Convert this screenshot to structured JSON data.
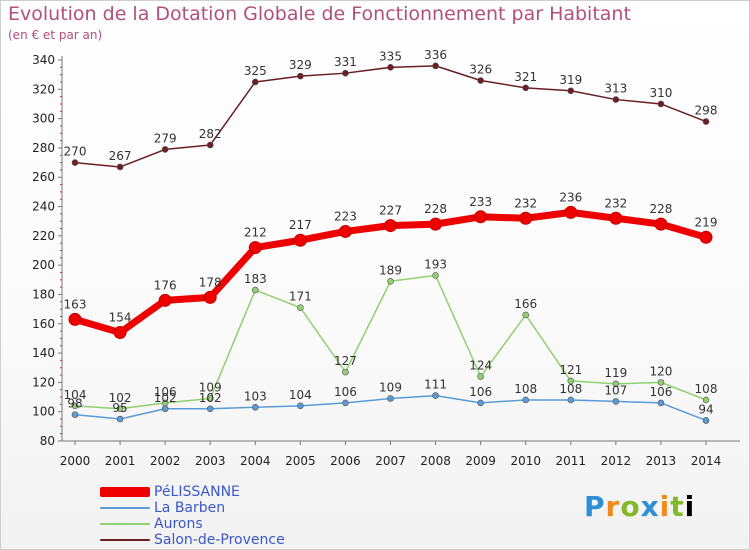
{
  "chart_data": {
    "type": "line",
    "title": "Evolution de la Dotation Globale de Fonctionnement par Habitant",
    "subtitle": "(en € et par an)",
    "xlabel": "",
    "ylabel": "",
    "x": [
      "2000",
      "2001",
      "2002",
      "2003",
      "2004",
      "2005",
      "2006",
      "2007",
      "2008",
      "2009",
      "2010",
      "2011",
      "2012",
      "2013",
      "2014"
    ],
    "ylim": [
      80,
      340
    ],
    "yticks": [
      80,
      100,
      120,
      140,
      160,
      180,
      200,
      220,
      240,
      260,
      280,
      300,
      320,
      340
    ],
    "grid": false,
    "legend_position": "bottom-left",
    "series": [
      {
        "name": "Salon-de-Provence",
        "color": "#6b1e24",
        "values": [
          270,
          267,
          279,
          282,
          325,
          329,
          331,
          335,
          336,
          326,
          321,
          319,
          313,
          310,
          298
        ]
      },
      {
        "name": "Aurons",
        "color": "#90d070",
        "values": [
          104,
          102,
          106,
          109,
          183,
          171,
          127,
          189,
          193,
          124,
          166,
          121,
          119,
          120,
          108
        ]
      },
      {
        "name": "La Barben",
        "color": "#5b9bd5",
        "values": [
          98,
          95,
          102,
          102,
          103,
          104,
          106,
          109,
          111,
          106,
          108,
          108,
          107,
          106,
          94
        ]
      },
      {
        "name": "PéLISSANNE",
        "color": "#ee0000",
        "values": [
          163,
          154,
          176,
          178,
          212,
          217,
          223,
          227,
          228,
          233,
          232,
          236,
          232,
          228,
          219
        ]
      }
    ]
  },
  "legend": {
    "items": [
      {
        "name": "PéLISSANNE",
        "color": "#ee0000"
      },
      {
        "name": "La Barben",
        "color": "#5b9bd5"
      },
      {
        "name": "Aurons",
        "color": "#90d070"
      },
      {
        "name": "Salon-de-Provence",
        "color": "#6b1e24"
      }
    ]
  },
  "logo": {
    "letters": [
      "P",
      "r",
      "o",
      "x",
      "i",
      "t",
      "i"
    ]
  }
}
